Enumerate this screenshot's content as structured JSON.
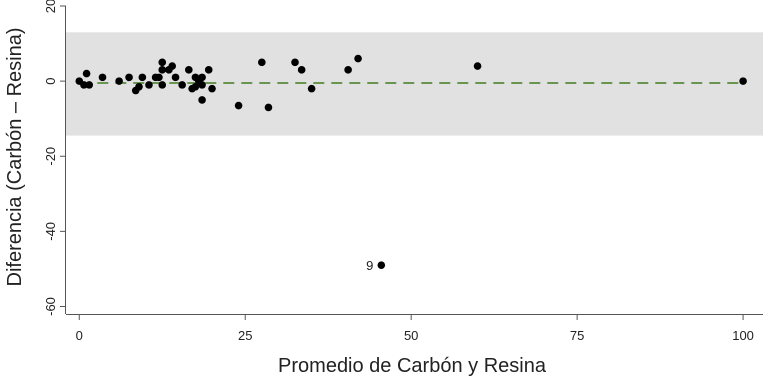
{
  "chart_data": {
    "type": "scatter",
    "title": "",
    "xlabel": "Promedio de Carbón y Resina",
    "ylabel": "Diferencia (Carbón – Resina)",
    "xlim": [
      -2,
      103
    ],
    "ylim": [
      -62,
      20
    ],
    "xticks": [
      0,
      25,
      50,
      75,
      100
    ],
    "yticks": [
      -60,
      -40,
      -20,
      0,
      20
    ],
    "grid": false,
    "limits_band": {
      "lower": -14.5,
      "upper": 13,
      "color": "#e1e1e1"
    },
    "mean_line": {
      "value": -0.5,
      "color": "#5a8a3c",
      "style": "dashed"
    },
    "point_color": "#000000",
    "series": [
      {
        "points": [
          {
            "x": 0,
            "y": 0
          },
          {
            "x": 0.7,
            "y": -1
          },
          {
            "x": 1.1,
            "y": 2
          },
          {
            "x": 1.5,
            "y": -1
          },
          {
            "x": 3.5,
            "y": 1
          },
          {
            "x": 6,
            "y": 0
          },
          {
            "x": 7.5,
            "y": 1
          },
          {
            "x": 8.5,
            "y": -2.5
          },
          {
            "x": 9,
            "y": -1.5
          },
          {
            "x": 9.5,
            "y": 1
          },
          {
            "x": 10.5,
            "y": -1
          },
          {
            "x": 11.5,
            "y": 1
          },
          {
            "x": 12,
            "y": 1
          },
          {
            "x": 12.5,
            "y": 3
          },
          {
            "x": 12.5,
            "y": 5
          },
          {
            "x": 12.5,
            "y": -1
          },
          {
            "x": 13.5,
            "y": 3
          },
          {
            "x": 14,
            "y": 4
          },
          {
            "x": 14.5,
            "y": 1
          },
          {
            "x": 15.5,
            "y": -1
          },
          {
            "x": 16.5,
            "y": 3
          },
          {
            "x": 17,
            "y": -2
          },
          {
            "x": 17.5,
            "y": 1
          },
          {
            "x": 17.5,
            "y": -1.5
          },
          {
            "x": 18,
            "y": 0
          },
          {
            "x": 18.5,
            "y": 1
          },
          {
            "x": 18.5,
            "y": -1
          },
          {
            "x": 18.5,
            "y": -5
          },
          {
            "x": 19.5,
            "y": 3
          },
          {
            "x": 20,
            "y": -2
          },
          {
            "x": 24,
            "y": -6.5
          },
          {
            "x": 27.5,
            "y": 5
          },
          {
            "x": 28.5,
            "y": -7
          },
          {
            "x": 32.5,
            "y": 5
          },
          {
            "x": 33.5,
            "y": 3
          },
          {
            "x": 35,
            "y": -2
          },
          {
            "x": 40.5,
            "y": 3
          },
          {
            "x": 42,
            "y": 6
          },
          {
            "x": 45.5,
            "y": -49,
            "label": "9"
          },
          {
            "x": 60,
            "y": 4
          },
          {
            "x": 100,
            "y": 0
          }
        ]
      }
    ]
  }
}
